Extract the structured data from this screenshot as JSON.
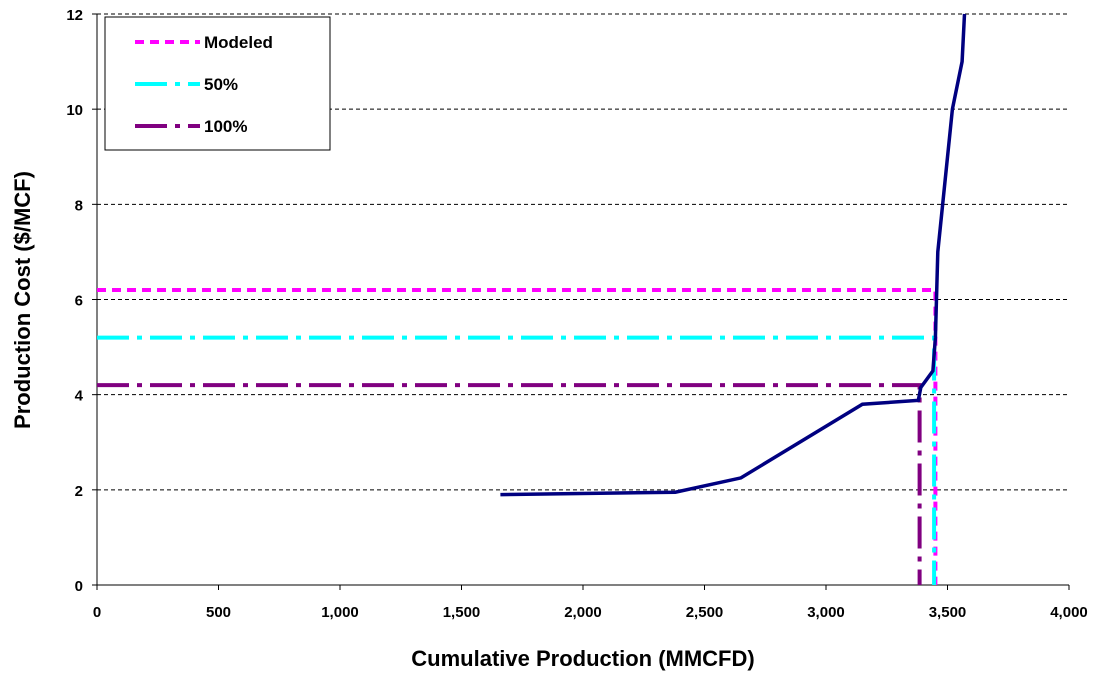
{
  "chart_data": {
    "type": "line",
    "xlabel": "Cumulative Production (MMCFD)",
    "ylabel": "Production Cost ($/MCF)",
    "xlim": [
      0,
      4000
    ],
    "ylim": [
      0,
      12
    ],
    "x_ticks": [
      0,
      500,
      1000,
      1500,
      2000,
      2500,
      3000,
      3500,
      4000
    ],
    "x_tick_labels": [
      "0",
      "500",
      "1,000",
      "1,500",
      "2,000",
      "2,500",
      "3,000",
      "3,500",
      "4,000"
    ],
    "y_ticks": [
      0,
      2,
      4,
      6,
      8,
      10,
      12
    ],
    "y_tick_labels": [
      "0",
      "2",
      "4",
      "6",
      "8",
      "10",
      "12"
    ],
    "grid": "horizontal dashed",
    "legend_position": "top-left",
    "series": [
      {
        "color": "#000080",
        "style": "solid",
        "points": [
          [
            1660,
            1.9
          ],
          [
            2380,
            1.95
          ],
          [
            2650,
            2.25
          ],
          [
            3150,
            3.8
          ],
          [
            3380,
            3.88
          ],
          [
            3390,
            4.15
          ],
          [
            3440,
            4.5
          ],
          [
            3450,
            5.2
          ],
          [
            3460,
            7.0
          ],
          [
            3520,
            10.0
          ],
          [
            3560,
            11.0
          ],
          [
            3570,
            12.0
          ]
        ]
      },
      {
        "name": "Modeled",
        "color": "#ff00ff",
        "style": "dashed",
        "points": [
          [
            0,
            6.2
          ],
          [
            3450,
            6.2
          ],
          [
            3450,
            0
          ]
        ]
      },
      {
        "name": "50%",
        "color": "#00ffff",
        "style": "long-dash-dot",
        "points": [
          [
            0,
            5.2
          ],
          [
            3445,
            5.2
          ],
          [
            3445,
            0
          ]
        ]
      },
      {
        "name": "100%",
        "color": "#800080",
        "style": "long-dash-dot",
        "points": [
          [
            0,
            4.2
          ],
          [
            3385,
            4.2
          ],
          [
            3385,
            0
          ]
        ]
      }
    ]
  }
}
